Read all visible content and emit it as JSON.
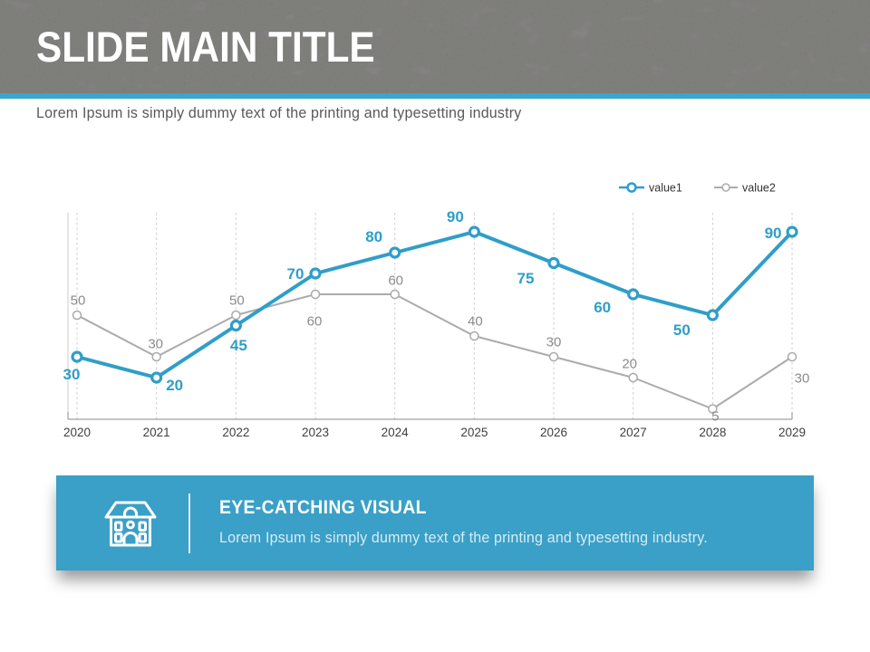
{
  "slide": {
    "title": "SLIDE MAIN TITLE",
    "subtitle": "Lorem Ipsum is simply dummy text of the printing and typesetting industry"
  },
  "chart_data": {
    "type": "line",
    "categories": [
      "2020",
      "2021",
      "2022",
      "2023",
      "2024",
      "2025",
      "2026",
      "2027",
      "2028",
      "2029"
    ],
    "series": [
      {
        "name": "value1",
        "values": [
          30,
          20,
          45,
          70,
          80,
          90,
          75,
          60,
          50,
          90
        ],
        "color": "#2f9ec9"
      },
      {
        "name": "value2",
        "values": [
          50,
          30,
          50,
          60,
          60,
          40,
          30,
          20,
          5,
          30
        ],
        "color": "#ababab"
      }
    ],
    "title": "",
    "xlabel": "",
    "ylabel": "",
    "ylim": [
      0,
      100
    ],
    "grid": "vertical-dashed",
    "legend_position": "top-right",
    "data_labels": true
  },
  "banner": {
    "icon": "house-icon",
    "title": "EYE-CATCHING VISUAL",
    "text": "Lorem Ipsum is simply dummy text of the printing and typesetting industry."
  },
  "colors": {
    "accent_bar": "#3aa5ce",
    "banner_background": "#3aa0c7",
    "series1_blue": "#2f9ec9",
    "series2_gray": "#ababab",
    "data_label_gray": "#8c8c8c",
    "axis_gray": "#a0a0a0",
    "header_concrete_gray": "#a6a4a0"
  }
}
